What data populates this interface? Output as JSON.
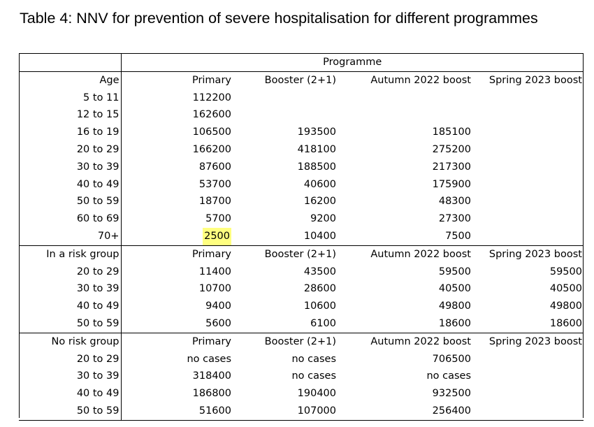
{
  "caption": "Table 4: NNV for prevention of severe hospitalisation for different programmes",
  "programme_label": "Programme",
  "sections": [
    {
      "header": [
        "Age",
        "Primary",
        "Booster (2+1)",
        "Autumn 2022 boost",
        "Spring 2023 boost"
      ],
      "rows": [
        [
          "5 to 11",
          "112200",
          "",
          "",
          ""
        ],
        [
          "12 to 15",
          "162600",
          "",
          "",
          ""
        ],
        [
          "16 to 19",
          "106500",
          "193500",
          "185100",
          ""
        ],
        [
          "20 to 29",
          "166200",
          "418100",
          "275200",
          ""
        ],
        [
          "30 to 39",
          "87600",
          "188500",
          "217300",
          ""
        ],
        [
          "40 to 49",
          "53700",
          "40600",
          "175900",
          ""
        ],
        [
          "50 to 59",
          "18700",
          "16200",
          "48300",
          ""
        ],
        [
          "60 to 69",
          "5700",
          "9200",
          "27300",
          ""
        ],
        [
          "70+",
          "2500",
          "10400",
          "7500",
          ""
        ]
      ]
    },
    {
      "header": [
        "In a risk group",
        "Primary",
        "Booster (2+1)",
        "Autumn 2022 boost",
        "Spring 2023 boost"
      ],
      "rows": [
        [
          "20 to 29",
          "11400",
          "43500",
          "59500",
          "59500"
        ],
        [
          "30 to 39",
          "10700",
          "28600",
          "40500",
          "40500"
        ],
        [
          "40 to 49",
          "9400",
          "10600",
          "49800",
          "49800"
        ],
        [
          "50 to 59",
          "5600",
          "6100",
          "18600",
          "18600"
        ]
      ]
    },
    {
      "header": [
        "No risk group",
        "Primary",
        "Booster (2+1)",
        "Autumn 2022 boost",
        "Spring 2023 boost"
      ],
      "rows": [
        [
          "20 to 29",
          "no cases",
          "no cases",
          "706500",
          ""
        ],
        [
          "30 to 39",
          "318400",
          "no cases",
          "no cases",
          ""
        ],
        [
          "40 to 49",
          "186800",
          "190400",
          "932500",
          ""
        ],
        [
          "50 to 59",
          "51600",
          "107000",
          "256400",
          ""
        ]
      ]
    }
  ],
  "highlight": {
    "section": 0,
    "row": 8,
    "col": 1,
    "color": "#ffff80"
  }
}
